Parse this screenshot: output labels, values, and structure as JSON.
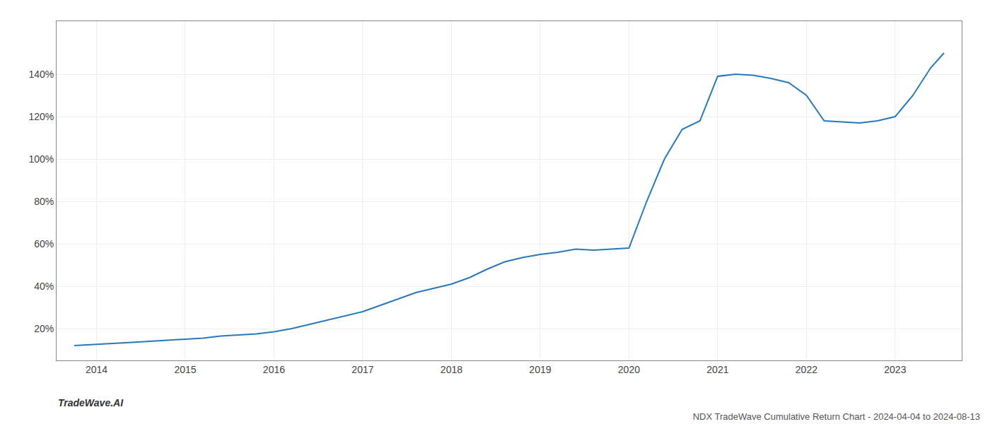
{
  "chart_data": {
    "type": "line",
    "title": "NDX TradeWave Cumulative Return Chart - 2024-04-04 to 2024-08-13",
    "annotations": [
      "TradeWave.AI"
    ],
    "x": [
      2013.75,
      2014.0,
      2014.2,
      2014.4,
      2014.6,
      2014.8,
      2015.0,
      2015.2,
      2015.4,
      2015.6,
      2015.8,
      2016.0,
      2016.2,
      2016.4,
      2016.6,
      2016.8,
      2017.0,
      2017.2,
      2017.4,
      2017.6,
      2017.8,
      2018.0,
      2018.2,
      2018.4,
      2018.6,
      2018.8,
      2019.0,
      2019.2,
      2019.4,
      2019.6,
      2019.8,
      2020.0,
      2020.2,
      2020.4,
      2020.6,
      2020.8,
      2021.0,
      2021.2,
      2021.4,
      2021.6,
      2021.8,
      2022.0,
      2022.2,
      2022.4,
      2022.6,
      2022.8,
      2023.0,
      2023.2,
      2023.4,
      2023.55
    ],
    "values": [
      12.0,
      12.5,
      13.0,
      13.5,
      14.0,
      14.5,
      15.0,
      15.5,
      16.5,
      17.0,
      17.5,
      18.5,
      20.0,
      22.0,
      24.0,
      26.0,
      28.0,
      31.0,
      34.0,
      37.0,
      39.0,
      41.0,
      44.0,
      48.0,
      51.5,
      53.5,
      55.0,
      56.0,
      57.5,
      57.0,
      57.5,
      58.0,
      80.0,
      100.0,
      114.0,
      118.0,
      139.0,
      140.0,
      139.5,
      138.0,
      136.0,
      130.0,
      118.0,
      117.5,
      117.0,
      118.0,
      120.0,
      130.0,
      143.0,
      150.0
    ],
    "color": "#2878bd",
    "xlim": [
      2013.55,
      2023.75
    ],
    "xticks": [
      2014,
      2015,
      2016,
      2017,
      2018,
      2019,
      2020,
      2021,
      2022,
      2023
    ],
    "ylim": [
      5,
      165
    ],
    "yticks": [
      {
        "value": 20,
        "label": "20%"
      },
      {
        "value": 40,
        "label": "40%"
      },
      {
        "value": 60,
        "label": "60%"
      },
      {
        "value": 80,
        "label": "80%"
      },
      {
        "value": 100,
        "label": "100%"
      },
      {
        "value": 120,
        "label": "120%"
      },
      {
        "value": 140,
        "label": "140%"
      }
    ],
    "grid": true
  }
}
